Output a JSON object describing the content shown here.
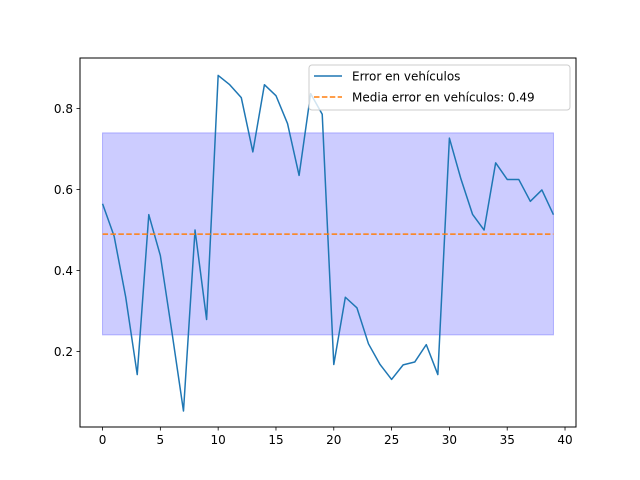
{
  "chart_data": {
    "type": "line",
    "title": "",
    "xlabel": "",
    "ylabel": "",
    "xlim": [
      -1.95,
      40.95
    ],
    "ylim": [
      0.0135,
      0.925
    ],
    "x_ticks": [
      0,
      5,
      10,
      15,
      20,
      25,
      30,
      35,
      40
    ],
    "y_ticks": [
      0.2,
      0.4,
      0.6,
      0.8
    ],
    "x_tick_labels": [
      "0",
      "5",
      "10",
      "15",
      "20",
      "25",
      "30",
      "35",
      "40"
    ],
    "y_tick_labels": [
      "0.2",
      "0.4",
      "0.6",
      "0.8"
    ],
    "grid": false,
    "legend_position": "top-right",
    "band": {
      "x_range": [
        0,
        39
      ],
      "y_range": [
        0.241,
        0.74
      ],
      "color": "#0000ff",
      "opacity": 0.2
    },
    "series": [
      {
        "name": "Error en vehículos",
        "color": "#1f77b4",
        "style": "solid",
        "x": [
          0,
          1,
          2,
          3,
          4,
          5,
          6,
          7,
          8,
          9,
          10,
          11,
          12,
          13,
          14,
          15,
          16,
          17,
          18,
          19,
          20,
          21,
          22,
          23,
          24,
          25,
          26,
          27,
          28,
          29,
          30,
          31,
          32,
          33,
          34,
          35,
          36,
          37,
          38,
          39
        ],
        "y": [
          0.565,
          0.485,
          0.335,
          0.143,
          0.538,
          0.437,
          0.248,
          0.053,
          0.5,
          0.279,
          0.882,
          0.859,
          0.827,
          0.693,
          0.859,
          0.832,
          0.763,
          0.635,
          0.837,
          0.786,
          0.168,
          0.334,
          0.308,
          0.219,
          0.168,
          0.131,
          0.167,
          0.174,
          0.217,
          0.143,
          0.727,
          0.626,
          0.539,
          0.5,
          0.666,
          0.625,
          0.625,
          0.571,
          0.599,
          0.538
        ]
      },
      {
        "name": "Media error en vehículos: 0.49",
        "color": "#ff7f0e",
        "style": "dashed",
        "x": [
          0,
          39
        ],
        "y": [
          0.49,
          0.49
        ]
      }
    ]
  }
}
